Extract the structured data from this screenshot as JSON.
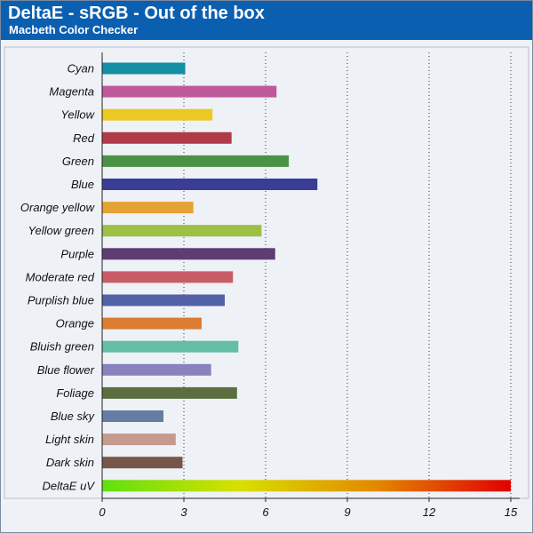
{
  "header": {
    "title": "DeltaE - sRGB - Out of the box",
    "subtitle": "Macbeth Color Checker"
  },
  "colors": {
    "header_bg": "#0b5fb0",
    "plot_bg": "#eef1f6"
  },
  "chart_data": {
    "type": "bar",
    "orientation": "horizontal",
    "title": "DeltaE - sRGB - Out of the box",
    "subtitle": "Macbeth Color Checker",
    "xlim": [
      0,
      15
    ],
    "xticks": [
      0,
      3,
      6,
      9,
      12,
      15
    ],
    "grid": "vertical dotted",
    "legend": "none",
    "categories": [
      "Cyan",
      "Magenta",
      "Yellow",
      "Red",
      "Green",
      "Blue",
      "Orange yellow",
      "Yellow green",
      "Purple",
      "Moderate red",
      "Purplish blue",
      "Orange",
      "Bluish green",
      "Blue flower",
      "Foliage",
      "Blue sky",
      "Light skin",
      "Dark skin",
      "DeltaE uV"
    ],
    "values": [
      3.05,
      6.4,
      4.05,
      4.75,
      6.85,
      7.9,
      3.35,
      5.85,
      6.35,
      4.8,
      4.5,
      3.65,
      5.0,
      4.0,
      4.95,
      2.25,
      2.7,
      2.95,
      15
    ],
    "bar_colors": [
      "#148fa4",
      "#c0599c",
      "#ebc922",
      "#b03a48",
      "#4a9346",
      "#393d96",
      "#e5a334",
      "#9cbf44",
      "#5e3d72",
      "#c75c67",
      "#5261a8",
      "#dc7c31",
      "#64bea5",
      "#8a82be",
      "#5c6e3f",
      "#667da3",
      "#c39a8c",
      "#785549",
      "gradient"
    ],
    "gradient_stops": [
      "#5fe010",
      "#d8e000",
      "#e38a00",
      "#e00000"
    ]
  }
}
